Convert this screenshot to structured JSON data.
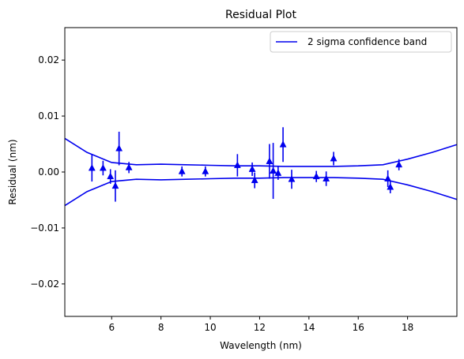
{
  "chart_data": {
    "type": "scatter",
    "title": "Residual Plot",
    "xlabel": "Wavelength (nm)",
    "ylabel": "Residual (nm)",
    "xlim": [
      4.1,
      20.0
    ],
    "ylim": [
      -0.0258,
      0.0258
    ],
    "x_ticks": [
      6,
      8,
      10,
      12,
      14,
      16,
      18
    ],
    "x_tick_labels": [
      "6",
      "8",
      "10",
      "12",
      "14",
      "16",
      "18"
    ],
    "y_ticks": [
      -0.02,
      -0.01,
      0.0,
      0.01,
      0.02
    ],
    "y_tick_labels": [
      "−0.02",
      "−0.01",
      "0.00",
      "0.01",
      "0.02"
    ],
    "grid": false,
    "legend": {
      "placement": "top-right",
      "entries": [
        "2 sigma confidence band"
      ]
    },
    "colors": {
      "series": "#0000ee",
      "axes": "#000000"
    },
    "marker": "triangle-up",
    "points": [
      {
        "x": 5.2,
        "y": 0.0007,
        "err": 0.0024
      },
      {
        "x": 5.65,
        "y": 0.0007,
        "err": 0.0013
      },
      {
        "x": 5.95,
        "y": -0.0008,
        "err": 0.0013
      },
      {
        "x": 6.15,
        "y": -0.0025,
        "err": 0.0028
      },
      {
        "x": 6.3,
        "y": 0.0042,
        "err": 0.003
      },
      {
        "x": 6.7,
        "y": 0.0008,
        "err": 0.001
      },
      {
        "x": 8.85,
        "y": 0.0001,
        "err": 0.0009
      },
      {
        "x": 9.8,
        "y": 0.0001,
        "err": 0.0009
      },
      {
        "x": 11.1,
        "y": 0.0012,
        "err": 0.002
      },
      {
        "x": 11.7,
        "y": 0.0005,
        "err": 0.0012
      },
      {
        "x": 11.8,
        "y": -0.0015,
        "err": 0.0014
      },
      {
        "x": 12.4,
        "y": 0.0019,
        "err": 0.0031
      },
      {
        "x": 12.55,
        "y": 0.0002,
        "err": 0.005
      },
      {
        "x": 12.75,
        "y": -0.0002,
        "err": 0.0012
      },
      {
        "x": 12.95,
        "y": 0.0049,
        "err": 0.0031
      },
      {
        "x": 13.3,
        "y": -0.0013,
        "err": 0.0017
      },
      {
        "x": 14.3,
        "y": -0.0008,
        "err": 0.001
      },
      {
        "x": 14.7,
        "y": -0.0012,
        "err": 0.0013
      },
      {
        "x": 15.0,
        "y": 0.0024,
        "err": 0.0012
      },
      {
        "x": 17.2,
        "y": -0.0012,
        "err": 0.0015
      },
      {
        "x": 17.3,
        "y": -0.0027,
        "err": 0.0011
      },
      {
        "x": 17.65,
        "y": 0.0013,
        "err": 0.001
      }
    ],
    "band": {
      "name": "2 sigma confidence band",
      "x": [
        4.1,
        5,
        6,
        7,
        8,
        9,
        10,
        11,
        12,
        13,
        14,
        15,
        16,
        17,
        18,
        19,
        20
      ],
      "upper": [
        0.006,
        0.0035,
        0.0017,
        0.0013,
        0.0014,
        0.0013,
        0.0012,
        0.0011,
        0.0011,
        0.001,
        0.001,
        0.001,
        0.0011,
        0.0013,
        0.0023,
        0.0035,
        0.0049
      ],
      "lower": [
        -0.006,
        -0.0035,
        -0.0017,
        -0.0013,
        -0.0014,
        -0.0013,
        -0.0012,
        -0.0011,
        -0.0011,
        -0.001,
        -0.001,
        -0.001,
        -0.0011,
        -0.0013,
        -0.0023,
        -0.0035,
        -0.0049
      ]
    }
  }
}
